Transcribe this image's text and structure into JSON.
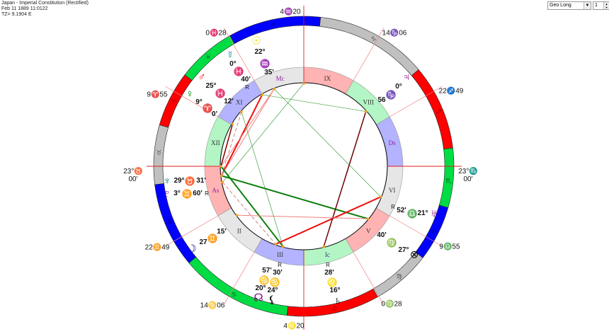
{
  "header": {
    "title": "Japan - Imperial Constitution (Rectified)",
    "datetime": "Feb 11 1889 11:0122",
    "timezone": "TZ=  9.1904 E"
  },
  "controls": {
    "mode_select": "Geo Long",
    "spinner_value": "1"
  },
  "colors": {
    "fire": "#ff0000",
    "earth": "#c0c0c0",
    "air": "#0000ff",
    "water": "#00dd44",
    "house_pink": "#ffb3b3",
    "house_gray": "#e6e6e6",
    "house_blue": "#b3b3ff",
    "house_green": "#b3f5c4",
    "cusp_line": "#f08080",
    "axis_line": "#e02020",
    "aspect_dot": "#f0a020"
  },
  "signs": [
    "♈",
    "♉",
    "♊",
    "♋",
    "♌",
    "♍",
    "♎",
    "♏",
    "♐",
    "♑",
    "♒",
    "♓"
  ],
  "houses": [
    "As",
    "II",
    "III",
    "Ic",
    "V",
    "VI",
    "Ds",
    "VIII",
    "IX",
    "Mc",
    "XI",
    "XII"
  ],
  "cusps": [
    {
      "lon": 53.0,
      "label": "23°♉",
      "label2": "00'"
    },
    {
      "lon": 82.817,
      "label": "22♊49"
    },
    {
      "lon": 104.1,
      "label": "14♋06"
    },
    {
      "lon": 124.333,
      "label": "4♌20"
    },
    {
      "lon": 150.467,
      "label": "0♍28"
    },
    {
      "lon": 189.917,
      "label": "9♎55"
    },
    {
      "lon": 233.0,
      "label": "23°♏",
      "label2": "00'"
    },
    {
      "lon": 262.817,
      "label": "22♐49"
    },
    {
      "lon": 284.1,
      "label": "14♑06"
    },
    {
      "lon": 304.333,
      "label": "4♒20"
    },
    {
      "lon": 330.467,
      "label": "0♓28"
    },
    {
      "lon": 9.917,
      "label": "9♈55"
    }
  ],
  "planets": [
    {
      "name": "sun",
      "glyph": "☉",
      "color": "#e8e000",
      "deg": "22°",
      "sign": "♒",
      "sign_color": "#000090",
      "min": "35'",
      "retro": "",
      "lon": 322.58
    },
    {
      "name": "mercury",
      "glyph": "☿",
      "color": "#008080",
      "deg": "0°",
      "sign": "♓",
      "sign_color": "#008000",
      "min": "40'",
      "retro": "R",
      "lon": 330.67
    },
    {
      "name": "mars",
      "glyph": "♂",
      "color": "#ff0000",
      "deg": "25°",
      "sign": "♓",
      "sign_color": "#008000",
      "min": "12'",
      "retro": "",
      "lon": 355.2
    },
    {
      "name": "venus",
      "glyph": "♀",
      "color": "#008000",
      "deg": "9°",
      "sign": "♈",
      "sign_color": "#c00000",
      "min": "0'",
      "retro": "",
      "lon": 9.0
    },
    {
      "name": "neptune",
      "glyph": "♆",
      "color": "#008080",
      "deg": "29°",
      "sign": "♉",
      "sign_color": "#000000",
      "min": "31'",
      "retro": "",
      "lon": 59.52
    },
    {
      "name": "pluto",
      "glyph": "♇",
      "color": "#800080",
      "deg": "3°",
      "sign": "♊",
      "sign_color": "#000090",
      "min": "60'",
      "retro": "R",
      "lon": 64.0
    },
    {
      "name": "moon",
      "glyph": "☽",
      "color": "#000090",
      "deg": "27",
      "sign": "♊",
      "sign_color": "#000090",
      "min": "15'",
      "retro": "",
      "lon": 87.25
    },
    {
      "name": "north-node",
      "glyph": "☊",
      "color": "#800080",
      "deg": "20°",
      "sign": "♋",
      "sign_color": "#008000",
      "min": "57'",
      "retro": "",
      "lon": 110.95
    },
    {
      "name": "lilith",
      "glyph": "⚸",
      "color": "#000000",
      "deg": "24°",
      "sign": "♋",
      "sign_color": "#008000",
      "min": "30'",
      "retro": "R",
      "lon": 114.5
    },
    {
      "name": "saturn",
      "glyph": "♄",
      "color": "#000000",
      "deg": "16°",
      "sign": "♌",
      "sign_color": "#c00000",
      "min": "28'",
      "retro": "R",
      "lon": 136.47
    },
    {
      "name": "part-of-fortune",
      "glyph": "⊗",
      "color": "#000000",
      "deg": "27°",
      "sign": "♍",
      "sign_color": "#000000",
      "min": "40'",
      "retro": "",
      "lon": 177.67
    },
    {
      "name": "uranus",
      "glyph": "♅",
      "color": "#800080",
      "deg": "21°",
      "sign": "♎",
      "sign_color": "#0000c0",
      "min": "52'",
      "retro": "R",
      "lon": 201.87
    },
    {
      "name": "jupiter",
      "glyph": "♃",
      "color": "#800080",
      "deg": "0°",
      "sign": "♑",
      "sign_color": "#000000",
      "min": "56",
      "retro": "",
      "lon": 270.93
    }
  ],
  "points": {
    "asc": 53.0,
    "mc": 304.33
  },
  "aspects": [
    {
      "a": "mercury",
      "b": "neptune",
      "color": "#ee1111",
      "width": 2
    },
    {
      "a": "sun",
      "b": "neptune",
      "color": "#f08080",
      "width": 1
    },
    {
      "a": "sun",
      "b": "asc",
      "color": "#f08080",
      "width": 1
    },
    {
      "a": "venus",
      "b": "asc",
      "color": "#800000",
      "width": 1.5
    },
    {
      "a": "mars",
      "b": "neptune",
      "color": "#d08080",
      "width": 1,
      "dash": true
    },
    {
      "a": "pluto",
      "b": "north-node",
      "color": "#d08080",
      "width": 1,
      "dash": true
    },
    {
      "a": "mc",
      "b": "pluto",
      "color": "#40a040",
      "width": 0.7
    },
    {
      "a": "mercury",
      "b": "jupiter",
      "color": "#40a040",
      "width": 0.7
    },
    {
      "a": "sun",
      "b": "uranus",
      "color": "#40a040",
      "width": 0.7
    },
    {
      "a": "mars",
      "b": "lilith",
      "color": "#40a040",
      "width": 0.7
    },
    {
      "a": "neptune",
      "b": "part-of-fortune",
      "color": "#108010",
      "width": 2
    },
    {
      "a": "asc",
      "b": "lilith",
      "color": "#108010",
      "width": 2
    },
    {
      "a": "north-node",
      "b": "uranus",
      "color": "#ee1111",
      "width": 2
    },
    {
      "a": "saturn",
      "b": "jupiter",
      "color": "#700000",
      "width": 1.5
    },
    {
      "a": "moon",
      "b": "part-of-fortune",
      "color": "#f08080",
      "width": 1
    }
  ]
}
